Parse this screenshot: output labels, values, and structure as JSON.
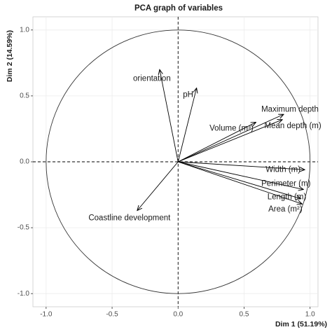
{
  "chart_data": {
    "type": "pca",
    "title": "PCA graph of variables",
    "x_label": "Dim 1 (51.19%)",
    "y_label": "Dim 2 (14.59%)",
    "labels": [
      "orientation",
      "pH",
      "Maximum depth",
      "Volume (m³)",
      "Mean depth (m)",
      "Width (m)",
      "Perimeter (m)",
      "Length (m)",
      "Area (m²)",
      "Coastline development"
    ],
    "x": [
      -0.14,
      0.14,
      0.8,
      0.59,
      0.79,
      0.96,
      0.95,
      0.93,
      0.94,
      -0.31
    ],
    "y": [
      0.7,
      0.56,
      0.36,
      0.3,
      0.32,
      -0.06,
      -0.21,
      -0.28,
      -0.32,
      -0.37
    ],
    "xlim": [
      -1.1,
      1.06
    ],
    "ylim": [
      -1.1,
      1.1
    ],
    "xticks": [
      {
        "value": -1.0,
        "label": "-1.0"
      },
      -0.5,
      {
        "value": 0.0,
        "label": "0.0"
      },
      0.5,
      {
        "value": 1.0,
        "label": "1.0"
      }
    ],
    "yticks": [
      {
        "value": -1.0,
        "label": "-1.0"
      },
      -0.5,
      {
        "value": 0.0,
        "label": "0.0"
      },
      0.5,
      {
        "value": 1.0,
        "label": "1.0"
      }
    ],
    "grid": true,
    "color": "#000000"
  }
}
